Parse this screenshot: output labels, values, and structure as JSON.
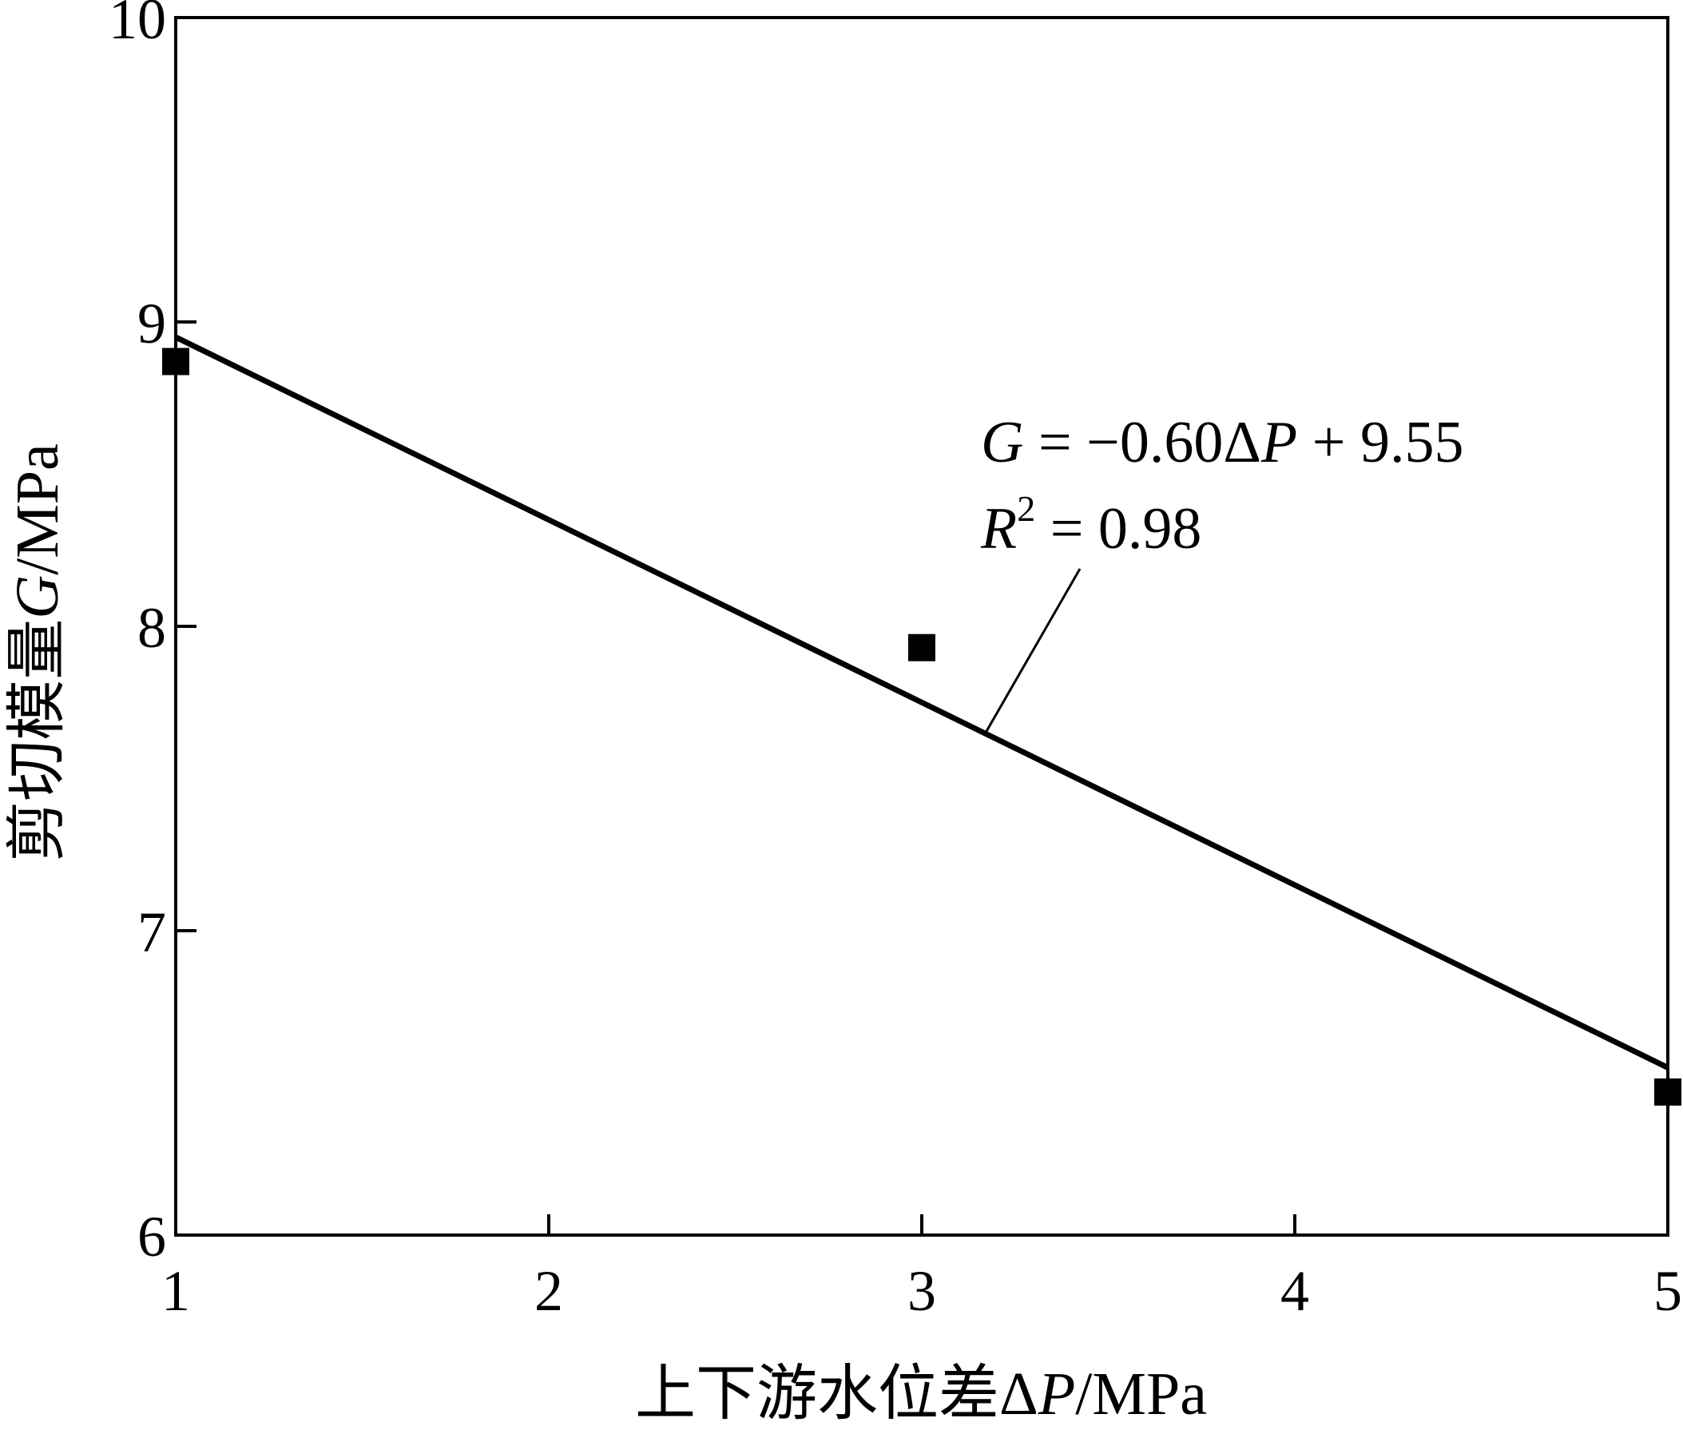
{
  "chart_data": {
    "type": "scatter",
    "title": "",
    "xlabel": {
      "prefix": "上下游水位差Δ",
      "var": "P",
      "unit": "/MPa"
    },
    "ylabel": {
      "prefix": "剪切模量",
      "var": "G",
      "unit": "/MPa"
    },
    "xlim": [
      1,
      5
    ],
    "ylim": [
      6,
      10
    ],
    "xticks": [
      1,
      2,
      3,
      4,
      5
    ],
    "xtick_labels": [
      "1",
      "2",
      "3",
      "4",
      "5"
    ],
    "yticks": [
      6,
      7,
      8,
      9,
      10
    ],
    "ytick_labels": [
      "6",
      "7",
      "8",
      "9",
      "10"
    ],
    "grid": false,
    "points": [
      {
        "x": 1,
        "y": 8.87
      },
      {
        "x": 3,
        "y": 7.93
      },
      {
        "x": 5,
        "y": 6.47
      }
    ],
    "fit_line": {
      "slope": -0.6,
      "intercept": 9.55,
      "x_range": [
        1,
        5
      ]
    },
    "annotation": {
      "equation": {
        "var": "G",
        "eq": " = −0.60Δ",
        "var2": "P",
        "rest": " + 9.55"
      },
      "r2": {
        "var": "R",
        "sup": "2",
        "rest": " = 0.98"
      },
      "pointer_to_x": 3.17
    }
  }
}
